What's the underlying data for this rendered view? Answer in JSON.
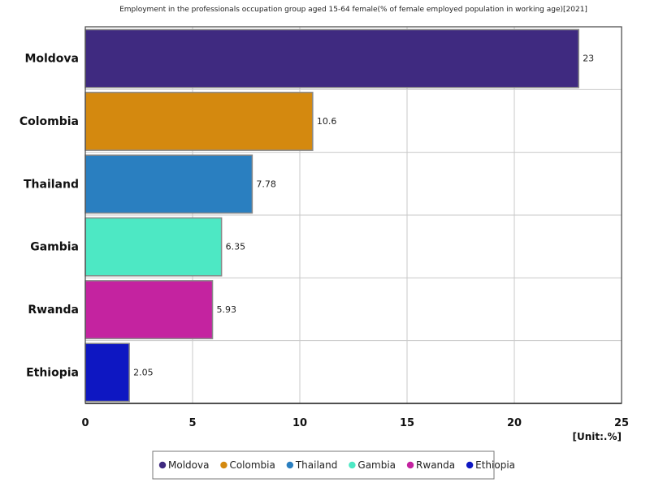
{
  "chart_data": {
    "type": "bar",
    "orientation": "horizontal",
    "title": "Employment in the professionals occupation group aged 15-64 female(% of female employed population in working age)[2021]",
    "unit": "[Unit:.%]",
    "categories": [
      "Moldova",
      "Colombia",
      "Thailand",
      "Gambia",
      "Rwanda",
      "Ethiopia"
    ],
    "values": [
      23,
      10.6,
      7.78,
      6.35,
      5.93,
      2.05
    ],
    "value_labels": [
      "23",
      "10.6",
      "7.78",
      "6.35",
      "5.93",
      "2.05"
    ],
    "colors": [
      "#3f2a80",
      "#d4890f",
      "#2a7fc0",
      "#4de8c4",
      "#c423a0",
      "#0e17c2"
    ],
    "xlim": [
      0,
      25
    ],
    "xticks": [
      0,
      5,
      10,
      15,
      20,
      25
    ],
    "grid": true,
    "legend_position": "bottom"
  }
}
